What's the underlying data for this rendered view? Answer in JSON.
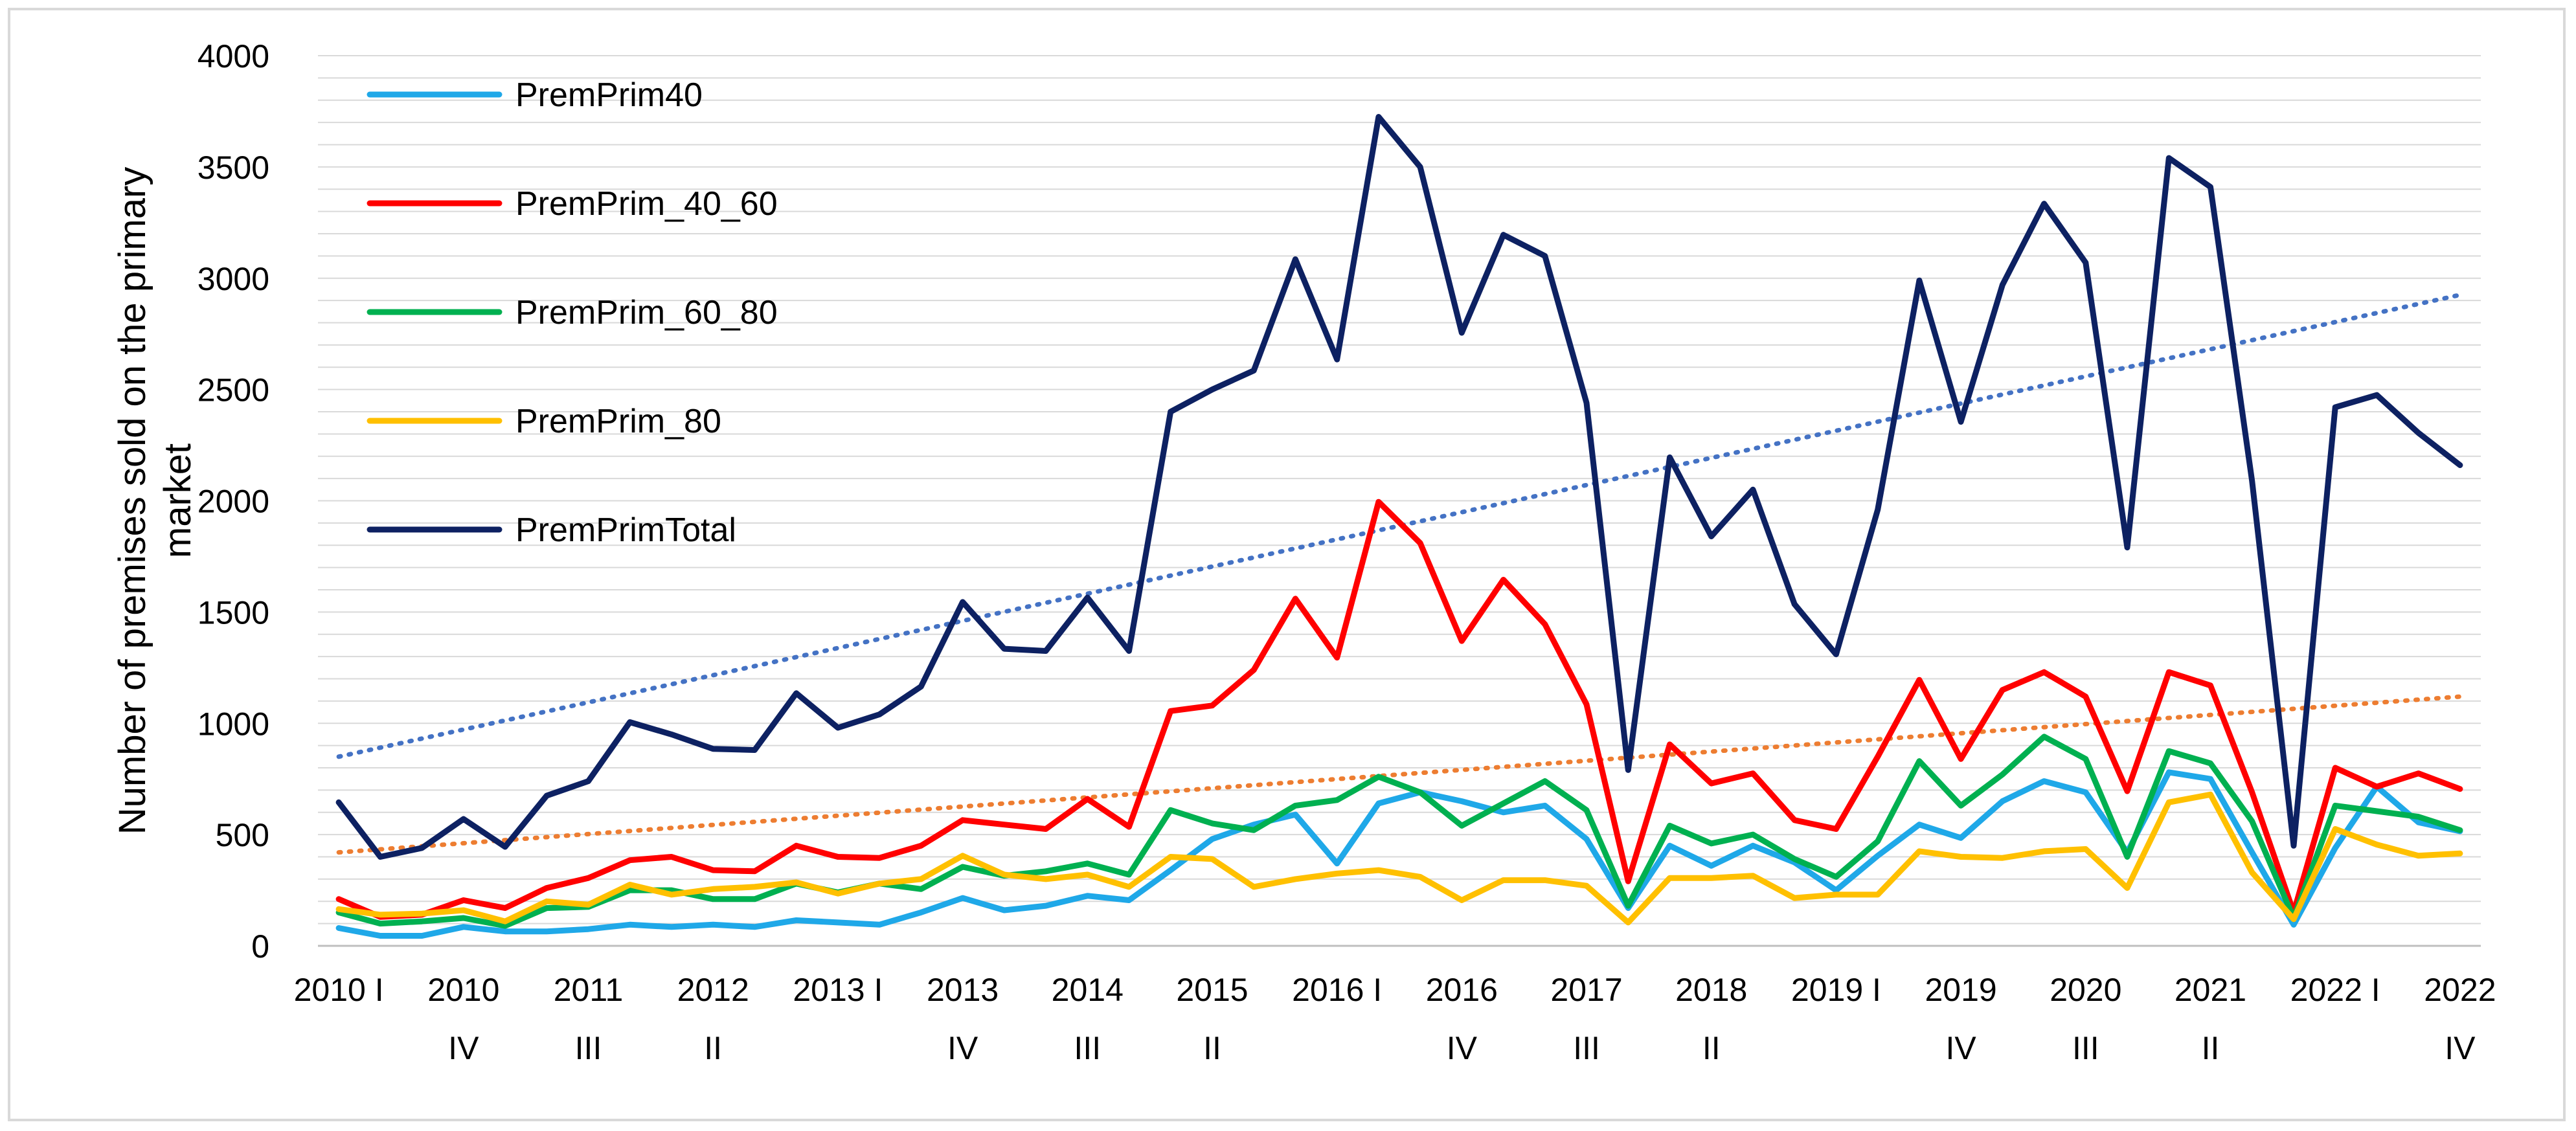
{
  "chart_data": {
    "type": "line",
    "title": "",
    "xlabel": "",
    "ylabel": "Number of premises sold on the primary market",
    "ylim": [
      0,
      4000
    ],
    "yticks": [
      0,
      500,
      1000,
      1500,
      2000,
      2500,
      3000,
      3500,
      4000
    ],
    "grid": "horizontal",
    "legend_position": "top-left",
    "x": [
      "2010 I",
      "2010 II",
      "2010 III",
      "2010 IV",
      "2011 I",
      "2011 II",
      "2011 III",
      "2011 IV",
      "2012 I",
      "2012 II",
      "2012 III",
      "2012 IV",
      "2013 I",
      "2013 II",
      "2013 III",
      "2013 IV",
      "2014 I",
      "2014 II",
      "2014 III",
      "2014 IV",
      "2015 I",
      "2015 II",
      "2015 III",
      "2015 IV",
      "2016 I",
      "2016 II",
      "2016 III",
      "2016 IV",
      "2017 I",
      "2017 II",
      "2017 III",
      "2017 IV",
      "2018 I",
      "2018 II",
      "2018 III",
      "2018 IV",
      "2019 I",
      "2019 II",
      "2019 III",
      "2019 IV",
      "2020 I",
      "2020 II",
      "2020 III",
      "2020 IV",
      "2021 I",
      "2021 II",
      "2021 III",
      "2021 IV",
      "2022 I",
      "2022 II",
      "2022 III",
      "2022 IV"
    ],
    "x_tick_labels": [
      {
        "index": 0,
        "lines": [
          "2010 I"
        ]
      },
      {
        "index": 3,
        "lines": [
          "2010",
          "IV"
        ]
      },
      {
        "index": 6,
        "lines": [
          "2011",
          "III"
        ]
      },
      {
        "index": 9,
        "lines": [
          "2012",
          "II"
        ]
      },
      {
        "index": 12,
        "lines": [
          "2013 I"
        ]
      },
      {
        "index": 15,
        "lines": [
          "2013",
          "IV"
        ]
      },
      {
        "index": 18,
        "lines": [
          "2014",
          "III"
        ]
      },
      {
        "index": 21,
        "lines": [
          "2015",
          "II"
        ]
      },
      {
        "index": 24,
        "lines": [
          "2016 I"
        ]
      },
      {
        "index": 27,
        "lines": [
          "2016",
          "IV"
        ]
      },
      {
        "index": 30,
        "lines": [
          "2017",
          "III"
        ]
      },
      {
        "index": 33,
        "lines": [
          "2018",
          "II"
        ]
      },
      {
        "index": 36,
        "lines": [
          "2019 I"
        ]
      },
      {
        "index": 39,
        "lines": [
          "2019",
          "IV"
        ]
      },
      {
        "index": 42,
        "lines": [
          "2020",
          "III"
        ]
      },
      {
        "index": 45,
        "lines": [
          "2021",
          "II"
        ]
      },
      {
        "index": 48,
        "lines": [
          "2022 I"
        ]
      },
      {
        "index": 51,
        "lines": [
          "2022",
          "IV"
        ]
      }
    ],
    "series": [
      {
        "name": "PremPrim40",
        "color": "#1fa8e8",
        "values": [
          80,
          45,
          45,
          85,
          65,
          65,
          75,
          95,
          85,
          95,
          85,
          115,
          105,
          95,
          150,
          215,
          160,
          180,
          225,
          205,
          340,
          480,
          545,
          590,
          370,
          640,
          690,
          650,
          600,
          630,
          480,
          170,
          450,
          360,
          450,
          375,
          250,
          405,
          545,
          485,
          650,
          740,
          690,
          420,
          780,
          750,
          420,
          95,
          440,
          715,
          555,
          515
        ]
      },
      {
        "name": "PremPrim_40_60",
        "color": "#ff0000",
        "values": [
          210,
          130,
          140,
          205,
          170,
          260,
          305,
          385,
          400,
          340,
          335,
          450,
          400,
          395,
          450,
          565,
          545,
          525,
          660,
          535,
          1055,
          1080,
          1240,
          1560,
          1295,
          1995,
          1810,
          1370,
          1645,
          1445,
          1085,
          290,
          905,
          730,
          775,
          565,
          525,
          850,
          1195,
          840,
          1150,
          1230,
          1120,
          695,
          1230,
          1170,
          690,
          150,
          800,
          715,
          775,
          705
        ]
      },
      {
        "name": "PremPrim_60_80",
        "color": "#00b050",
        "values": [
          150,
          100,
          110,
          125,
          90,
          170,
          175,
          250,
          250,
          210,
          210,
          280,
          240,
          280,
          255,
          355,
          315,
          335,
          370,
          320,
          610,
          550,
          520,
          630,
          655,
          760,
          690,
          540,
          640,
          740,
          610,
          180,
          540,
          460,
          500,
          390,
          310,
          470,
          830,
          630,
          770,
          940,
          840,
          400,
          875,
          820,
          560,
          125,
          630,
          605,
          580,
          520
        ]
      },
      {
        "name": "PremPrim_80",
        "color": "#ffc000",
        "values": [
          165,
          140,
          145,
          160,
          110,
          200,
          185,
          275,
          230,
          255,
          265,
          285,
          235,
          280,
          300,
          405,
          320,
          300,
          320,
          265,
          400,
          390,
          265,
          300,
          325,
          340,
          310,
          205,
          295,
          295,
          270,
          105,
          305,
          305,
          315,
          215,
          230,
          230,
          425,
          400,
          395,
          425,
          435,
          260,
          645,
          680,
          330,
          120,
          525,
          455,
          405,
          415
        ]
      },
      {
        "name": "PremPrimTotal",
        "color": "#0d2162",
        "values": [
          645,
          400,
          440,
          570,
          445,
          675,
          740,
          1005,
          950,
          885,
          880,
          1135,
          980,
          1040,
          1165,
          1545,
          1335,
          1325,
          1565,
          1325,
          2400,
          2500,
          2585,
          3085,
          2635,
          3725,
          3500,
          2755,
          3195,
          3100,
          2440,
          790,
          2195,
          1840,
          2050,
          1535,
          1310,
          1960,
          2990,
          2355,
          2970,
          3335,
          3070,
          1790,
          3540,
          3410,
          2090,
          450,
          2420,
          2475,
          2305,
          2160
        ]
      }
    ],
    "trendlines": [
      {
        "of": "PremPrimTotal",
        "style": "dotted",
        "color": "#4472c4",
        "start": 850,
        "end": 2925
      },
      {
        "of": "PremPrim_40_60",
        "style": "dotted",
        "color": "#ed7d31",
        "start": 420,
        "end": 1120
      }
    ]
  }
}
